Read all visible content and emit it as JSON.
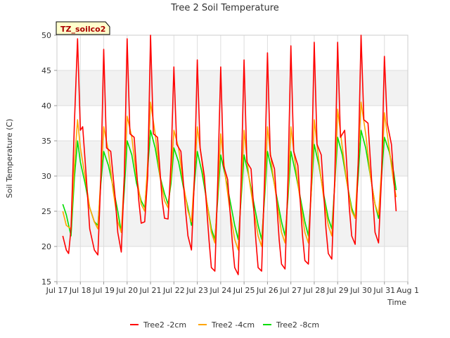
{
  "chart_data": {
    "type": "line",
    "title": "Tree 2 Soil Temperature",
    "xlabel": "Time",
    "ylabel": "Soil Temperature (C)",
    "annotation": "TZ_soilco2",
    "ylim": [
      15,
      50
    ],
    "yticks": [
      15,
      20,
      25,
      30,
      35,
      40,
      45,
      50
    ],
    "xlim": [
      17,
      32
    ],
    "xticks": [
      {
        "x": 17,
        "label": "Jul 17"
      },
      {
        "x": 18,
        "label": "Jul 18"
      },
      {
        "x": 19,
        "label": "Jul 19"
      },
      {
        "x": 20,
        "label": "Jul 20"
      },
      {
        "x": 21,
        "label": "Jul 21"
      },
      {
        "x": 22,
        "label": "Jul 22"
      },
      {
        "x": 23,
        "label": "Jul 23"
      },
      {
        "x": 24,
        "label": "Jul 24"
      },
      {
        "x": 25,
        "label": "Jul 25"
      },
      {
        "x": 26,
        "label": "Jul 26"
      },
      {
        "x": 27,
        "label": "Jul 27"
      },
      {
        "x": 28,
        "label": "Jul 28"
      },
      {
        "x": 29,
        "label": "Jul 29"
      },
      {
        "x": 30,
        "label": "Jul 30"
      },
      {
        "x": 31,
        "label": "Jul 31"
      },
      {
        "x": 32,
        "label": "Aug 1"
      }
    ],
    "bands": [
      [
        20,
        25
      ],
      [
        30,
        35
      ],
      [
        40,
        45
      ]
    ],
    "grid": true,
    "legend_position": "bottom",
    "series": [
      {
        "name": "Tree2 -2cm",
        "color": "#ff0000",
        "x": [
          17.25,
          17.4,
          17.5,
          17.6,
          17.75,
          17.88,
          18.0,
          18.1,
          18.25,
          18.4,
          18.6,
          18.75,
          18.88,
          19.0,
          19.12,
          19.3,
          19.5,
          19.6,
          19.75,
          19.88,
          20.0,
          20.12,
          20.3,
          20.5,
          20.6,
          20.75,
          20.88,
          21.0,
          21.12,
          21.3,
          21.5,
          21.6,
          21.75,
          21.88,
          22.0,
          22.12,
          22.3,
          22.5,
          22.6,
          22.75,
          22.88,
          23.0,
          23.12,
          23.3,
          23.5,
          23.6,
          23.75,
          23.88,
          24.0,
          24.12,
          24.3,
          24.5,
          24.6,
          24.75,
          24.88,
          25.0,
          25.12,
          25.3,
          25.5,
          25.6,
          25.75,
          25.88,
          26.0,
          26.12,
          26.3,
          26.5,
          26.6,
          26.75,
          26.88,
          27.0,
          27.12,
          27.3,
          27.5,
          27.6,
          27.75,
          27.88,
          28.0,
          28.12,
          28.3,
          28.5,
          28.6,
          28.75,
          28.88,
          29.0,
          29.12,
          29.3,
          29.5,
          29.6,
          29.75,
          29.88,
          30.0,
          30.12,
          30.3,
          30.5,
          30.6,
          30.75,
          30.88,
          31.0,
          31.12,
          31.3,
          31.5
        ],
        "y": [
          21.5,
          19.5,
          19.0,
          22.5,
          38.0,
          49.5,
          36.5,
          37.0,
          30.0,
          22.5,
          19.5,
          18.8,
          30.0,
          48.0,
          34.0,
          33.5,
          26.5,
          22.0,
          19.2,
          30.0,
          49.5,
          36.0,
          35.5,
          26.5,
          23.3,
          23.5,
          30.0,
          50.0,
          36.0,
          35.5,
          26.5,
          24.0,
          23.9,
          32.0,
          45.5,
          34.5,
          33.5,
          25.0,
          21.5,
          19.5,
          30.0,
          46.5,
          34.0,
          30.0,
          21.0,
          17.0,
          16.5,
          30.0,
          45.5,
          31.5,
          29.5,
          20.5,
          17.0,
          16.0,
          30.0,
          46.5,
          32.0,
          31.0,
          21.0,
          17.0,
          16.5,
          30.0,
          47.5,
          33.0,
          31.0,
          21.0,
          17.5,
          16.8,
          30.0,
          48.5,
          33.5,
          31.5,
          21.5,
          18.0,
          17.5,
          30.0,
          49.0,
          34.5,
          33.0,
          22.5,
          19.0,
          18.2,
          30.0,
          49.0,
          35.5,
          36.5,
          25.5,
          21.5,
          20.3,
          32.0,
          50.0,
          38.0,
          37.5,
          27.0,
          22.0,
          20.5,
          30.0,
          47.0,
          37.5,
          34.5,
          25.0
        ]
      },
      {
        "name": "Tree2 -4cm",
        "color": "#ffa500",
        "x": [
          17.25,
          17.4,
          17.6,
          17.75,
          17.88,
          18.0,
          18.2,
          18.4,
          18.6,
          18.75,
          18.88,
          19.0,
          19.2,
          19.4,
          19.6,
          19.75,
          19.88,
          20.0,
          20.2,
          20.4,
          20.6,
          20.75,
          20.88,
          21.0,
          21.2,
          21.4,
          21.6,
          21.75,
          21.88,
          22.0,
          22.2,
          22.4,
          22.6,
          22.75,
          22.88,
          23.0,
          23.2,
          23.4,
          23.6,
          23.75,
          23.88,
          24.0,
          24.2,
          24.4,
          24.6,
          24.75,
          24.88,
          25.0,
          25.2,
          25.4,
          25.6,
          25.75,
          25.88,
          26.0,
          26.2,
          26.4,
          26.6,
          26.75,
          26.88,
          27.0,
          27.2,
          27.4,
          27.6,
          27.75,
          27.88,
          28.0,
          28.2,
          28.4,
          28.6,
          28.75,
          28.88,
          29.0,
          29.2,
          29.4,
          29.6,
          29.75,
          29.88,
          30.0,
          30.2,
          30.4,
          30.6,
          30.75,
          30.88,
          31.0,
          31.2,
          31.4,
          31.5
        ],
        "y": [
          25.0,
          23.0,
          22.5,
          32.0,
          38.0,
          34.0,
          30.0,
          25.5,
          23.5,
          22.5,
          30.0,
          37.0,
          33.5,
          28.0,
          23.5,
          22.0,
          30.0,
          38.5,
          35.5,
          30.0,
          26.0,
          25.0,
          32.0,
          40.5,
          36.0,
          30.0,
          26.5,
          25.5,
          30.0,
          36.5,
          34.0,
          29.0,
          25.0,
          23.5,
          30.0,
          37.0,
          32.0,
          26.5,
          22.0,
          20.5,
          28.0,
          36.0,
          30.0,
          25.0,
          21.0,
          19.5,
          28.0,
          36.5,
          30.0,
          25.5,
          21.5,
          20.0,
          28.0,
          37.0,
          31.0,
          26.5,
          22.0,
          20.5,
          28.0,
          37.0,
          31.5,
          26.5,
          22.0,
          20.5,
          28.0,
          38.0,
          32.0,
          27.0,
          23.0,
          21.5,
          29.0,
          39.5,
          34.0,
          29.0,
          25.0,
          24.0,
          32.0,
          40.5,
          36.0,
          30.0,
          26.0,
          24.5,
          31.0,
          39.0,
          34.0,
          29.0,
          27.0
        ]
      },
      {
        "name": "Tree2 -8cm",
        "color": "#00dd00",
        "x": [
          17.25,
          17.4,
          17.6,
          17.75,
          17.88,
          18.0,
          18.2,
          18.4,
          18.6,
          18.75,
          18.88,
          19.0,
          19.2,
          19.4,
          19.6,
          19.75,
          19.88,
          20.0,
          20.2,
          20.4,
          20.6,
          20.75,
          20.88,
          21.0,
          21.2,
          21.4,
          21.6,
          21.75,
          21.88,
          22.0,
          22.2,
          22.4,
          22.6,
          22.75,
          22.88,
          23.0,
          23.2,
          23.4,
          23.6,
          23.75,
          23.88,
          24.0,
          24.2,
          24.4,
          24.6,
          24.75,
          24.88,
          25.0,
          25.2,
          25.4,
          25.6,
          25.75,
          25.88,
          26.0,
          26.2,
          26.4,
          26.6,
          26.75,
          26.88,
          27.0,
          27.2,
          27.4,
          27.6,
          27.75,
          27.88,
          28.0,
          28.2,
          28.4,
          28.6,
          28.75,
          28.88,
          29.0,
          29.2,
          29.4,
          29.6,
          29.75,
          29.88,
          30.0,
          30.2,
          30.4,
          30.6,
          30.75,
          30.88,
          31.0,
          31.2,
          31.4,
          31.5
        ],
        "y": [
          26.0,
          24.5,
          21.5,
          30.0,
          35.0,
          32.0,
          29.0,
          25.5,
          23.5,
          23.0,
          29.0,
          33.5,
          31.5,
          28.5,
          25.0,
          22.0,
          28.0,
          35.0,
          33.0,
          29.0,
          26.5,
          25.5,
          31.0,
          36.5,
          34.0,
          30.0,
          27.5,
          26.0,
          29.0,
          34.0,
          32.0,
          28.5,
          25.5,
          23.0,
          29.0,
          33.5,
          30.5,
          26.5,
          22.5,
          21.0,
          27.0,
          33.0,
          30.0,
          26.5,
          23.0,
          21.0,
          27.0,
          33.0,
          30.0,
          26.5,
          23.0,
          21.0,
          27.0,
          33.5,
          30.5,
          27.0,
          23.5,
          21.5,
          27.0,
          33.5,
          30.5,
          27.0,
          23.5,
          21.5,
          28.0,
          34.5,
          31.5,
          27.5,
          24.0,
          22.5,
          29.0,
          35.5,
          33.0,
          29.0,
          25.5,
          24.0,
          30.0,
          36.5,
          34.0,
          30.0,
          26.0,
          24.0,
          30.0,
          35.5,
          33.5,
          30.5,
          28.0
        ]
      }
    ]
  }
}
